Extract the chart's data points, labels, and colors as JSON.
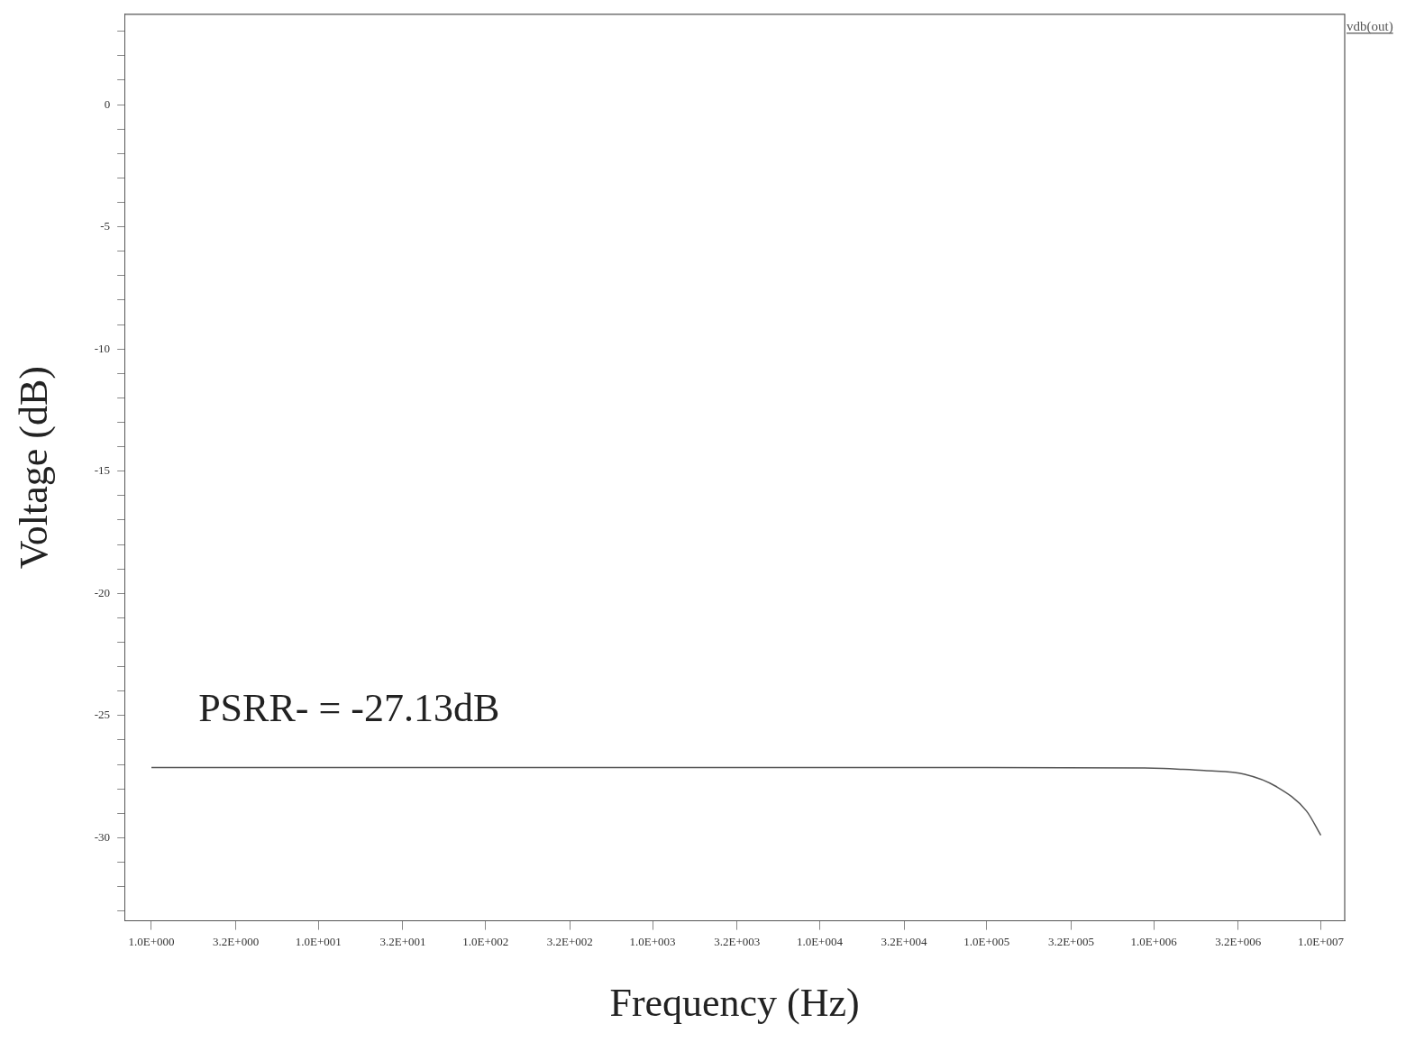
{
  "chart_data": {
    "type": "line",
    "xlabel": "Frequency (Hz)",
    "ylabel": "Voltage (dB)",
    "log": "x",
    "legend": "top right",
    "marker": "none",
    "line_style": "solid",
    "grid": false,
    "annotations": [
      "PSRR- = -27.13dB"
    ],
    "x": [
      1,
      10,
      100,
      1000,
      10000,
      100000,
      1000000,
      1500000,
      2000000,
      3500000,
      5400000,
      8200000,
      10000000
    ],
    "series": [
      {
        "name": "vdb(out)",
        "color": "#555555",
        "values": [
          -27.13,
          -27.13,
          -27.13,
          -27.13,
          -27.13,
          -27.13,
          -27.15,
          -27.2,
          -27.25,
          -27.4,
          -27.9,
          -28.9,
          -29.9
        ]
      }
    ],
    "xlim": [
      0.69,
      13900000
    ],
    "xticks": [
      {
        "value": 1,
        "label": "1.0E+000"
      },
      {
        "value": 3.2,
        "label": "3.2E+000"
      },
      {
        "value": 10,
        "label": "1.0E+001"
      },
      {
        "value": 32,
        "label": "3.2E+001"
      },
      {
        "value": 100,
        "label": "1.0E+002"
      },
      {
        "value": 320,
        "label": "3.2E+002"
      },
      {
        "value": 1000,
        "label": "1.0E+003"
      },
      {
        "value": 3200,
        "label": "3.2E+003"
      },
      {
        "value": 10000,
        "label": "1.0E+004"
      },
      {
        "value": 32000,
        "label": "3.2E+004"
      },
      {
        "value": 100000,
        "label": "1.0E+005"
      },
      {
        "value": 320000,
        "label": "3.2E+005"
      },
      {
        "value": 1000000,
        "label": "1.0E+006"
      },
      {
        "value": 3200000,
        "label": "3.2E+006"
      },
      {
        "value": 10000000,
        "label": "1.0E+007"
      }
    ],
    "ylim": [
      -33.4,
      3.7
    ],
    "yticks": [
      {
        "value": -33,
        "label": null
      },
      {
        "value": -32,
        "label": null
      },
      {
        "value": -31,
        "label": null
      },
      -30,
      {
        "value": -29,
        "label": null
      },
      {
        "value": -28,
        "label": null
      },
      {
        "value": -27,
        "label": null
      },
      {
        "value": -26,
        "label": null
      },
      -25,
      {
        "value": -24,
        "label": null
      },
      {
        "value": -23,
        "label": null
      },
      {
        "value": -22,
        "label": null
      },
      {
        "value": -21,
        "label": null
      },
      -20,
      {
        "value": -19,
        "label": null
      },
      {
        "value": -18,
        "label": null
      },
      {
        "value": -17,
        "label": null
      },
      {
        "value": -16,
        "label": null
      },
      -15,
      {
        "value": -14,
        "label": null
      },
      {
        "value": -13,
        "label": null
      },
      {
        "value": -12,
        "label": null
      },
      {
        "value": -11,
        "label": null
      },
      -10,
      {
        "value": -9,
        "label": null
      },
      {
        "value": -8,
        "label": null
      },
      {
        "value": -7,
        "label": null
      },
      {
        "value": -6,
        "label": null
      },
      -5,
      {
        "value": -4,
        "label": null
      },
      {
        "value": -3,
        "label": null
      },
      {
        "value": -2,
        "label": null
      },
      {
        "value": -1,
        "label": null
      },
      0,
      {
        "value": 1,
        "label": null
      },
      {
        "value": 2,
        "label": null
      },
      {
        "value": 3,
        "label": null
      }
    ]
  }
}
